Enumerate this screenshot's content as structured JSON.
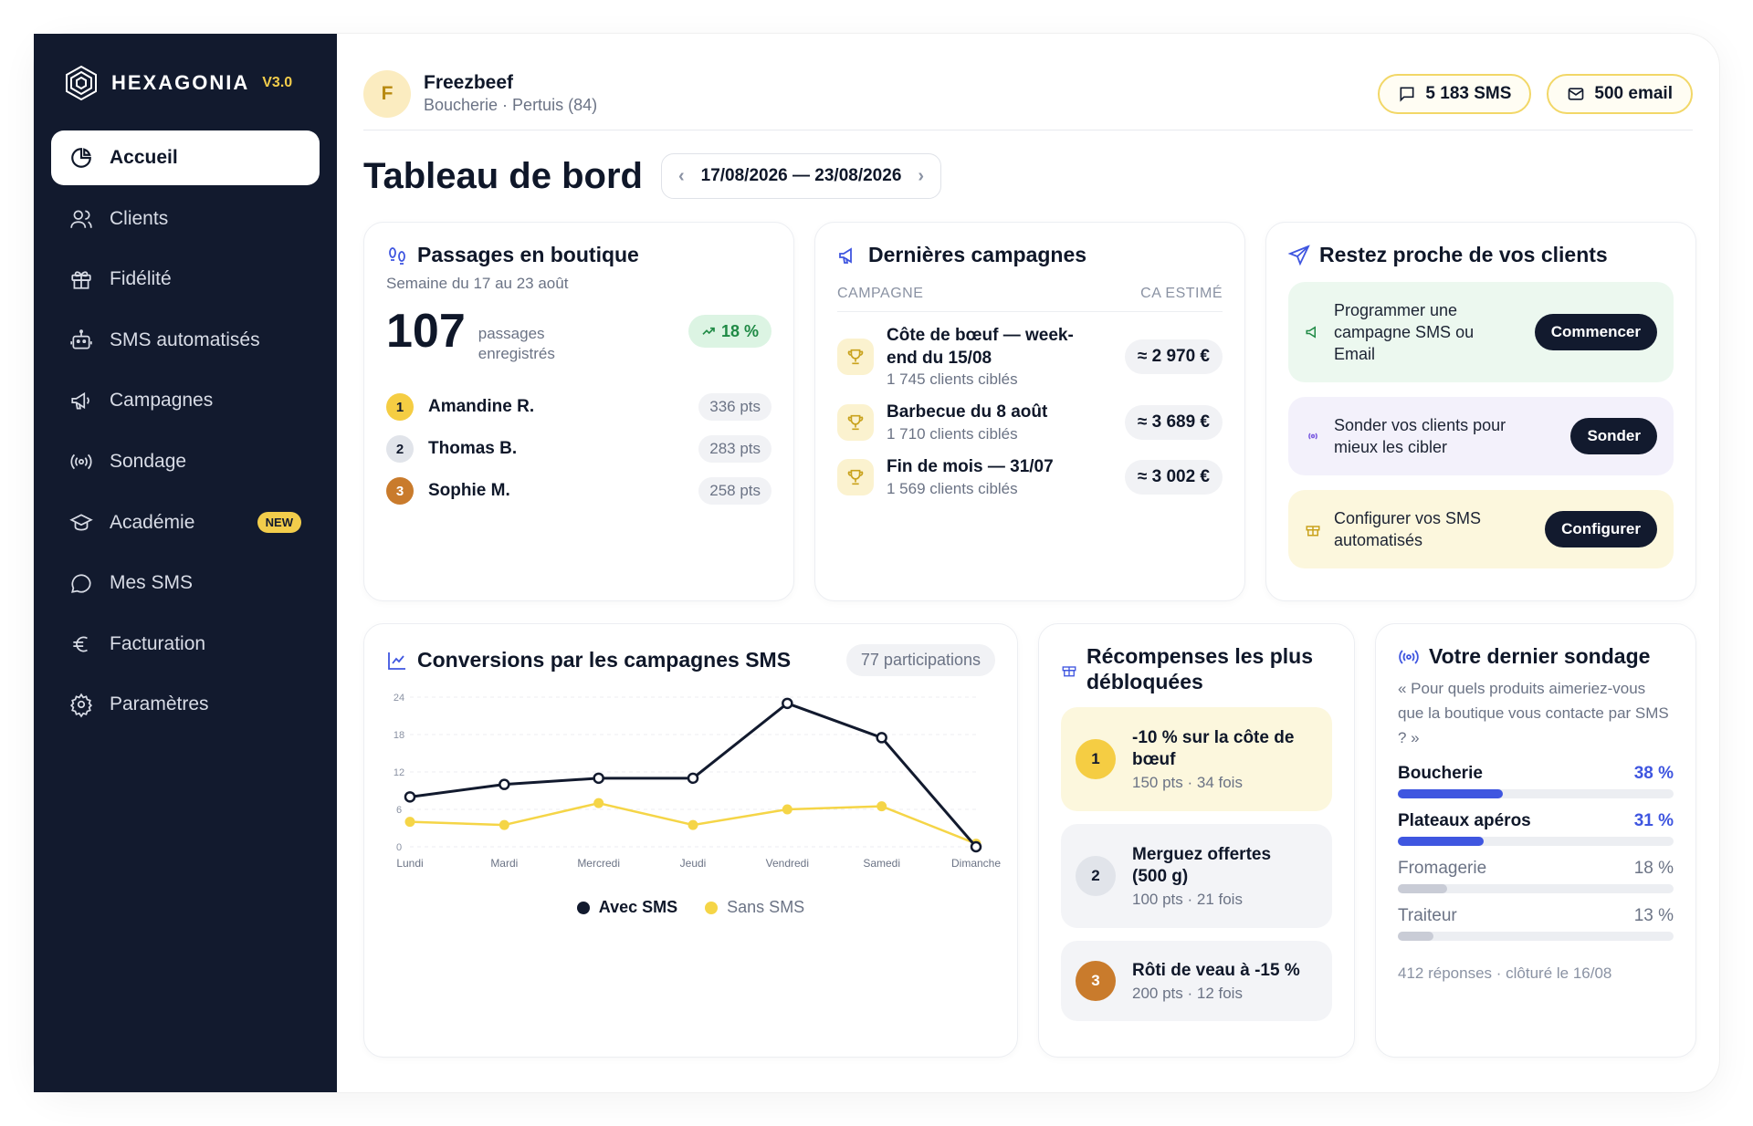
{
  "brand": {
    "name": "HEXAGONIA",
    "version": "V3.0"
  },
  "nav": [
    {
      "label": "Accueil",
      "icon": "pie-chart-icon",
      "active": true
    },
    {
      "label": "Clients",
      "icon": "users-icon"
    },
    {
      "label": "Fidélité",
      "icon": "gift-icon"
    },
    {
      "label": "SMS automatisés",
      "icon": "robot-icon"
    },
    {
      "label": "Campagnes",
      "icon": "megaphone-icon"
    },
    {
      "label": "Sondage",
      "icon": "broadcast-icon"
    },
    {
      "label": "Académie",
      "icon": "graduation-cap-icon",
      "badge": "NEW"
    },
    {
      "label": "Mes SMS",
      "icon": "chat-bubble-icon"
    },
    {
      "label": "Facturation",
      "icon": "euro-icon"
    },
    {
      "label": "Paramètres",
      "icon": "gear-icon"
    }
  ],
  "header": {
    "avatar_letter": "F",
    "shop_name": "Freezbeef",
    "shop_sub": "Boucherie · Pertuis (84)",
    "sms_credit": "5 183 SMS",
    "email_credit": "500 email"
  },
  "page": {
    "title": "Tableau de bord",
    "date_range": "17/08/2026 — 23/08/2026"
  },
  "passages": {
    "title": "Passages en boutique",
    "subtitle": "Semaine du 17 au 23 août",
    "count": "107",
    "count_label_1": "passages",
    "count_label_2": "enregistrés",
    "trend": "18 %",
    "ranking": [
      {
        "rank": "1",
        "name": "Amandine R.",
        "points": "336 pts"
      },
      {
        "rank": "2",
        "name": "Thomas B.",
        "points": "283 pts"
      },
      {
        "rank": "3",
        "name": "Sophie M.",
        "points": "258 pts"
      }
    ]
  },
  "campaigns": {
    "title": "Dernières campagnes",
    "col_campaign": "CAMPAGNE",
    "col_revenue": "CA ESTIMÉ",
    "items": [
      {
        "name_1": "Côte de bœuf — week-",
        "name_2": "end du 15/08",
        "targets": "1 745 clients ciblés",
        "revenue": "≈ 2 970 €"
      },
      {
        "name_1": "Barbecue du 8 août",
        "name_2": "",
        "targets": "1 710 clients ciblés",
        "revenue": "≈ 3 689 €"
      },
      {
        "name_1": "Fin de mois — 31/07",
        "name_2": "",
        "targets": "1 569 clients ciblés",
        "revenue": "≈ 3 002 €"
      }
    ]
  },
  "stay_close": {
    "title": "Restez proche de vos clients",
    "actions": [
      {
        "text": "Programmer une campagne SMS ou Email",
        "button": "Commencer",
        "icon": "megaphone-icon"
      },
      {
        "text": "Sonder vos clients pour mieux les cibler",
        "button": "Sonder",
        "icon": "broadcast-icon"
      },
      {
        "text": "Configurer vos SMS automatisés",
        "button": "Configurer",
        "icon": "gift-icon"
      }
    ]
  },
  "conversions": {
    "title": "Conversions par les campagnes SMS",
    "participations": "77 participations",
    "legend_with": "Avec SMS",
    "legend_without": "Sans SMS"
  },
  "chart_data": {
    "type": "line",
    "categories": [
      "Lundi",
      "Mardi",
      "Mercredi",
      "Jeudi",
      "Vendredi",
      "Samedi",
      "Dimanche"
    ],
    "yticks": [
      0,
      6,
      12,
      18,
      24
    ],
    "ylim": [
      0,
      24
    ],
    "grid": true,
    "legend": "bottom",
    "series": [
      {
        "name": "Avec SMS",
        "color": "#121a2e",
        "values": [
          8,
          10,
          11,
          11,
          23,
          17.5,
          0
        ]
      },
      {
        "name": "Sans SMS",
        "color": "#f5d547",
        "values": [
          4,
          3.5,
          7,
          3.5,
          6,
          6.5,
          0.5
        ]
      }
    ]
  },
  "rewards": {
    "title_1": "Récompenses les plus",
    "title_2": "débloquées",
    "items": [
      {
        "rank": "1",
        "name_1": "-10 % sur la côte de",
        "name_2": "bœuf",
        "meta": "150 pts · 34 fois"
      },
      {
        "rank": "2",
        "name_1": "Merguez offertes",
        "name_2": "(500 g)",
        "meta": "100 pts · 21 fois"
      },
      {
        "rank": "3",
        "name_1": "Rôti de veau à -15 %",
        "name_2": "",
        "meta": "200 pts · 12 fois"
      }
    ]
  },
  "survey": {
    "title": "Votre dernier sondage",
    "question": "« Pour quels produits aimeriez-vous que la boutique vous contacte par SMS ? »",
    "answers": [
      {
        "label": "Boucherie",
        "pct": "38 %",
        "value": 38,
        "color": "#3f56e0",
        "highlight": true
      },
      {
        "label": "Plateaux apéros",
        "pct": "31 %",
        "value": 31,
        "color": "#3f56e0",
        "highlight": true
      },
      {
        "label": "Fromagerie",
        "pct": "18 %",
        "value": 18,
        "color": "#c9ccd6",
        "highlight": false
      },
      {
        "label": "Traiteur",
        "pct": "13 %",
        "value": 13,
        "color": "#c9ccd6",
        "highlight": false
      }
    ],
    "footer": "412 réponses · clôturé le 16/08"
  }
}
